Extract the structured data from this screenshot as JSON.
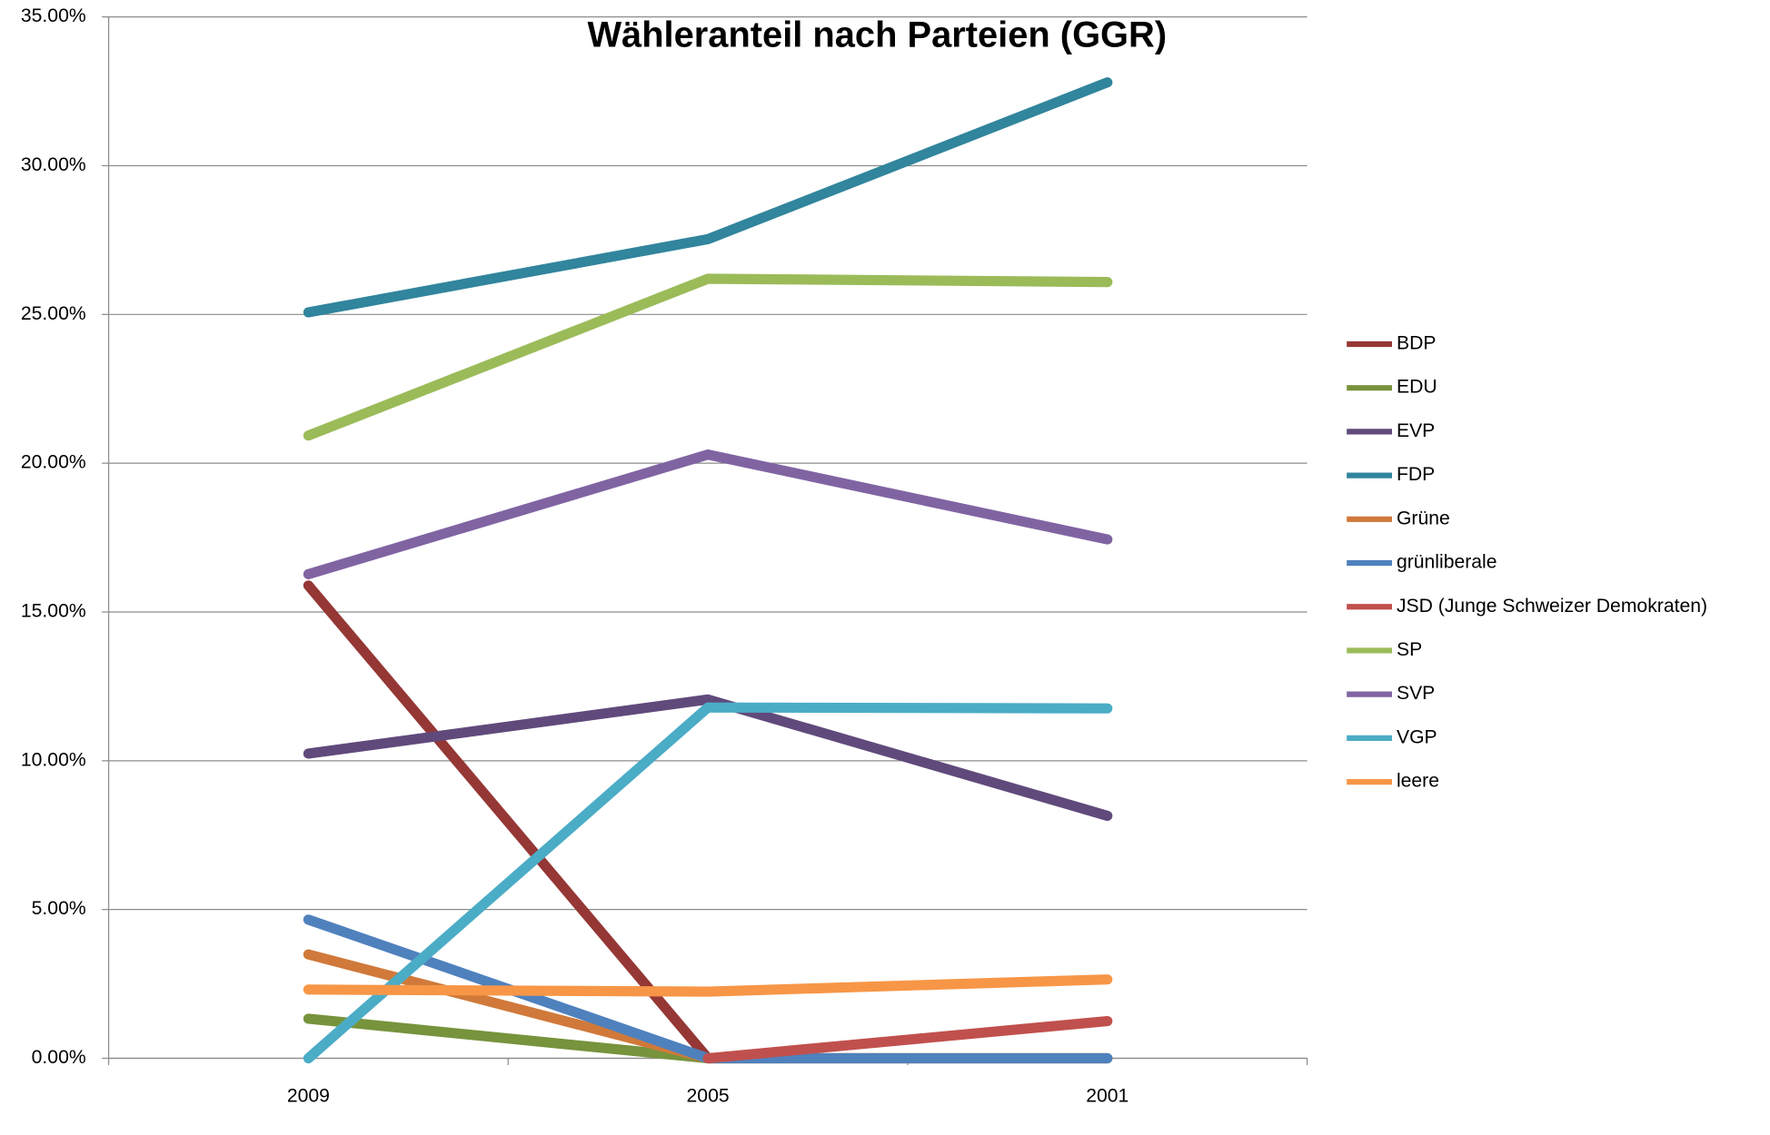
{
  "chart_data": {
    "type": "line",
    "title": "Wähleranteil nach Parteien (GGR)",
    "categories": [
      "2009",
      "2005",
      "2001"
    ],
    "ylim": [
      0,
      35
    ],
    "yticks": [
      {
        "value": 0,
        "label": "0.00%"
      },
      {
        "value": 5,
        "label": "5.00%"
      },
      {
        "value": 10,
        "label": "10.00%"
      },
      {
        "value": 15,
        "label": "15.00%"
      },
      {
        "value": 20,
        "label": "20.00%"
      },
      {
        "value": 25,
        "label": "25.00%"
      },
      {
        "value": 30,
        "label": "30.00%"
      },
      {
        "value": 35,
        "label": "35.00%"
      }
    ],
    "grid": true,
    "legend": "right",
    "series": [
      {
        "name": "BDP",
        "color": "#953735",
        "values": [
          15.89,
          0,
          null
        ]
      },
      {
        "name": "EDU",
        "color": "#77933c",
        "values": [
          1.33,
          0,
          0
        ]
      },
      {
        "name": "EVP",
        "color": "#604a7b",
        "values": [
          10.24,
          12.06,
          8.15
        ]
      },
      {
        "name": "FDP",
        "color": "#31859c",
        "values": [
          25.07,
          27.53,
          32.8
        ]
      },
      {
        "name": "Grüne",
        "color": "#d0793a",
        "values": [
          3.49,
          0,
          0
        ]
      },
      {
        "name": "grünliberale",
        "color": "#4f81bd",
        "values": [
          4.66,
          0,
          0
        ]
      },
      {
        "name": "JSD (Junge Schweizer Demokraten)",
        "color": "#c0504d",
        "values": [
          null,
          0,
          1.25
        ]
      },
      {
        "name": "SP",
        "color": "#9bbb59",
        "values": [
          20.93,
          26.2,
          26.09
        ]
      },
      {
        "name": "SVP",
        "color": "#8064a2",
        "values": [
          16.27,
          20.29,
          17.44
        ]
      },
      {
        "name": "VGP",
        "color": "#4bacc6",
        "values": [
          0,
          11.79,
          11.76
        ]
      },
      {
        "name": "leere",
        "color": "#f79646",
        "values": [
          2.31,
          2.24,
          2.65
        ]
      }
    ]
  }
}
